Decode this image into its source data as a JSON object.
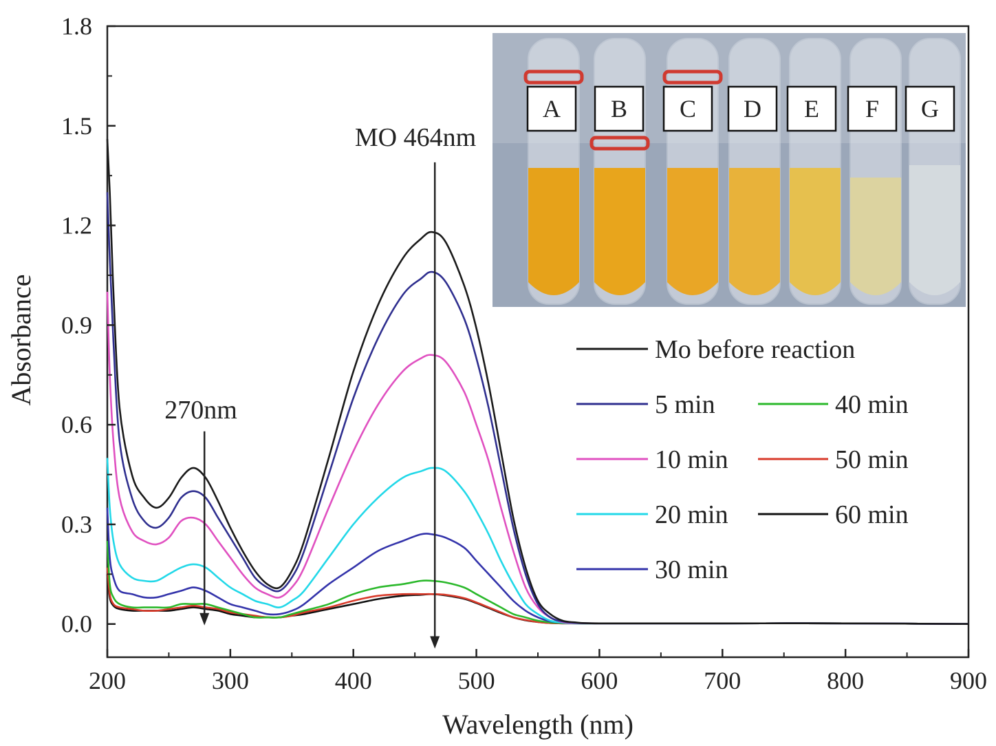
{
  "chart_data": {
    "type": "line",
    "title": "",
    "xlabel": "Wavelength (nm)",
    "ylabel": "Absorbance",
    "xlim": [
      200,
      900
    ],
    "ylim": [
      -0.1,
      1.8
    ],
    "xticks": [
      "200",
      "300",
      "400",
      "500",
      "600",
      "700",
      "800",
      "900"
    ],
    "yticks": [
      "0.0",
      "0.3",
      "0.6",
      "0.9",
      "1.2",
      "1.5",
      "1.8"
    ],
    "annotations": [
      {
        "text": "270nm",
        "x": 270,
        "arrow_from": 0.58,
        "arrow_to": 0.0
      },
      {
        "text": "MO 464nm",
        "x": 464,
        "arrow_from": 1.39,
        "arrow_to": -0.07
      }
    ],
    "series": [
      {
        "name": "Mo before reaction",
        "color": "#1a1a1a",
        "x": [
          200,
          202,
          205,
          210,
          220,
          230,
          240,
          250,
          260,
          270,
          280,
          290,
          300,
          310,
          320,
          330,
          340,
          350,
          360,
          380,
          400,
          420,
          440,
          455,
          464,
          475,
          490,
          500,
          510,
          520,
          530,
          540,
          550,
          560,
          570,
          580,
          600,
          700,
          800,
          900
        ],
        "y": [
          1.46,
          1.3,
          1.0,
          0.65,
          0.45,
          0.38,
          0.35,
          0.38,
          0.44,
          0.47,
          0.44,
          0.37,
          0.29,
          0.22,
          0.16,
          0.12,
          0.11,
          0.16,
          0.25,
          0.5,
          0.76,
          0.96,
          1.1,
          1.16,
          1.18,
          1.15,
          1.02,
          0.89,
          0.72,
          0.52,
          0.32,
          0.17,
          0.07,
          0.03,
          0.01,
          0.005,
          0.002,
          0.002,
          0.002,
          0.0
        ]
      },
      {
        "name": "5 min",
        "color": "#2f2f8f",
        "x": [
          200,
          202,
          205,
          210,
          220,
          230,
          240,
          250,
          260,
          270,
          280,
          290,
          300,
          310,
          320,
          330,
          340,
          350,
          360,
          380,
          400,
          420,
          440,
          455,
          464,
          475,
          490,
          500,
          510,
          520,
          530,
          540,
          550,
          560,
          570,
          580,
          600,
          700,
          800,
          900
        ],
        "y": [
          1.3,
          1.1,
          0.85,
          0.55,
          0.38,
          0.31,
          0.29,
          0.32,
          0.38,
          0.4,
          0.38,
          0.32,
          0.26,
          0.2,
          0.14,
          0.11,
          0.1,
          0.14,
          0.22,
          0.45,
          0.68,
          0.86,
          0.99,
          1.04,
          1.06,
          1.03,
          0.92,
          0.8,
          0.65,
          0.47,
          0.29,
          0.15,
          0.06,
          0.02,
          0.008,
          0.004,
          0.002,
          0.002,
          0.002,
          0.0
        ]
      },
      {
        "name": "10 min",
        "color": "#e050c0",
        "x": [
          200,
          202,
          205,
          210,
          220,
          230,
          240,
          250,
          260,
          270,
          280,
          290,
          300,
          310,
          320,
          330,
          340,
          350,
          360,
          380,
          400,
          420,
          440,
          455,
          464,
          475,
          490,
          500,
          510,
          520,
          530,
          540,
          550,
          560,
          570,
          580,
          600,
          700,
          800,
          900
        ],
        "y": [
          1.0,
          0.75,
          0.55,
          0.38,
          0.28,
          0.25,
          0.24,
          0.26,
          0.31,
          0.32,
          0.3,
          0.25,
          0.2,
          0.15,
          0.11,
          0.09,
          0.08,
          0.11,
          0.17,
          0.35,
          0.52,
          0.66,
          0.76,
          0.8,
          0.81,
          0.79,
          0.7,
          0.6,
          0.49,
          0.35,
          0.22,
          0.11,
          0.05,
          0.02,
          0.006,
          0.003,
          0.002,
          0.002,
          0.002,
          0.0
        ]
      },
      {
        "name": "20 min",
        "color": "#22d8e8",
        "x": [
          200,
          202,
          205,
          210,
          220,
          230,
          240,
          250,
          260,
          270,
          280,
          290,
          300,
          310,
          320,
          330,
          340,
          350,
          360,
          380,
          400,
          420,
          440,
          455,
          464,
          475,
          490,
          500,
          510,
          520,
          530,
          540,
          550,
          560,
          570,
          580,
          600,
          700,
          800,
          900
        ],
        "y": [
          0.5,
          0.35,
          0.25,
          0.18,
          0.14,
          0.13,
          0.13,
          0.15,
          0.17,
          0.18,
          0.17,
          0.14,
          0.11,
          0.09,
          0.07,
          0.06,
          0.05,
          0.07,
          0.1,
          0.2,
          0.3,
          0.38,
          0.44,
          0.46,
          0.47,
          0.46,
          0.4,
          0.34,
          0.27,
          0.19,
          0.12,
          0.06,
          0.03,
          0.01,
          0.004,
          0.002,
          0.002,
          0.002,
          0.002,
          0.0
        ]
      },
      {
        "name": "30 min",
        "color": "#3333aa",
        "x": [
          200,
          202,
          205,
          210,
          220,
          230,
          240,
          250,
          260,
          270,
          280,
          290,
          300,
          310,
          320,
          330,
          340,
          350,
          360,
          380,
          400,
          420,
          440,
          455,
          464,
          475,
          490,
          500,
          510,
          520,
          530,
          540,
          550,
          560,
          570,
          580,
          600,
          700,
          800,
          900
        ],
        "y": [
          0.35,
          0.2,
          0.14,
          0.1,
          0.09,
          0.08,
          0.08,
          0.09,
          0.1,
          0.11,
          0.1,
          0.08,
          0.06,
          0.05,
          0.04,
          0.03,
          0.03,
          0.04,
          0.06,
          0.12,
          0.17,
          0.22,
          0.25,
          0.27,
          0.27,
          0.26,
          0.23,
          0.19,
          0.15,
          0.11,
          0.07,
          0.04,
          0.02,
          0.008,
          0.004,
          0.002,
          0.002,
          0.002,
          0.002,
          0.0
        ]
      },
      {
        "name": "40 min",
        "color": "#2ab82a",
        "x": [
          200,
          202,
          205,
          210,
          220,
          230,
          240,
          250,
          260,
          270,
          280,
          290,
          300,
          310,
          320,
          330,
          340,
          350,
          360,
          380,
          400,
          420,
          440,
          455,
          464,
          475,
          490,
          500,
          510,
          520,
          530,
          540,
          550,
          560,
          570,
          580,
          600,
          700,
          800,
          900
        ],
        "y": [
          0.25,
          0.12,
          0.08,
          0.06,
          0.05,
          0.05,
          0.05,
          0.05,
          0.06,
          0.06,
          0.06,
          0.05,
          0.04,
          0.03,
          0.02,
          0.02,
          0.02,
          0.03,
          0.04,
          0.06,
          0.09,
          0.11,
          0.12,
          0.13,
          0.13,
          0.125,
          0.11,
          0.09,
          0.07,
          0.05,
          0.03,
          0.02,
          0.01,
          0.005,
          0.003,
          0.002,
          0.002,
          0.002,
          0.002,
          0.0
        ]
      },
      {
        "name": "50 min",
        "color": "#d83a2a",
        "x": [
          200,
          202,
          205,
          210,
          220,
          230,
          240,
          250,
          260,
          270,
          280,
          290,
          300,
          310,
          320,
          330,
          340,
          350,
          360,
          380,
          400,
          420,
          440,
          455,
          464,
          475,
          490,
          500,
          510,
          520,
          530,
          540,
          550,
          560,
          570,
          580,
          600,
          700,
          800,
          900
        ],
        "y": [
          0.17,
          0.09,
          0.06,
          0.05,
          0.045,
          0.04,
          0.04,
          0.045,
          0.05,
          0.055,
          0.05,
          0.045,
          0.035,
          0.03,
          0.025,
          0.02,
          0.02,
          0.025,
          0.035,
          0.05,
          0.07,
          0.085,
          0.09,
          0.09,
          0.09,
          0.088,
          0.078,
          0.065,
          0.05,
          0.035,
          0.02,
          0.012,
          0.006,
          0.003,
          0.002,
          0.002,
          0.002,
          0.002,
          0.002,
          0.0
        ]
      },
      {
        "name": "60 min",
        "color": "#111111",
        "x": [
          200,
          202,
          205,
          210,
          220,
          230,
          240,
          250,
          260,
          270,
          280,
          290,
          300,
          310,
          320,
          330,
          340,
          350,
          360,
          380,
          400,
          420,
          440,
          455,
          464,
          475,
          490,
          500,
          510,
          520,
          530,
          540,
          550,
          560,
          570,
          580,
          600,
          700,
          800,
          900
        ],
        "y": [
          0.15,
          0.08,
          0.055,
          0.045,
          0.04,
          0.04,
          0.04,
          0.04,
          0.045,
          0.05,
          0.045,
          0.04,
          0.03,
          0.025,
          0.02,
          0.02,
          0.02,
          0.025,
          0.03,
          0.045,
          0.06,
          0.075,
          0.085,
          0.088,
          0.09,
          0.086,
          0.076,
          0.063,
          0.048,
          0.033,
          0.02,
          0.011,
          0.006,
          0.003,
          0.002,
          0.002,
          0.002,
          0.002,
          0.002,
          0.0
        ]
      }
    ],
    "legend": {
      "placement": "right",
      "entries": [
        {
          "label": "Mo before reaction",
          "color": "#1a1a1a"
        },
        {
          "label": "5 min",
          "color": "#2f2f8f"
        },
        {
          "label": "10 min",
          "color": "#e050c0"
        },
        {
          "label": "20 min",
          "color": "#22d8e8"
        },
        {
          "label": "30 min",
          "color": "#3333aa"
        },
        {
          "label": "40 min",
          "color": "#2ab82a"
        },
        {
          "label": "50 min",
          "color": "#d83a2a"
        },
        {
          "label": "60 min",
          "color": "#111111"
        }
      ]
    },
    "inset_photo": {
      "description_labels": [
        "A",
        "B",
        "C",
        "D",
        "E",
        "F",
        "G"
      ],
      "tube_colors": [
        "#e6a21a",
        "#e8a51c",
        "#e9a626",
        "#e8b23a",
        "#e6c04e",
        "#dcd3a0",
        "#d4dade"
      ],
      "background_color": "#9aa6b8"
    }
  }
}
